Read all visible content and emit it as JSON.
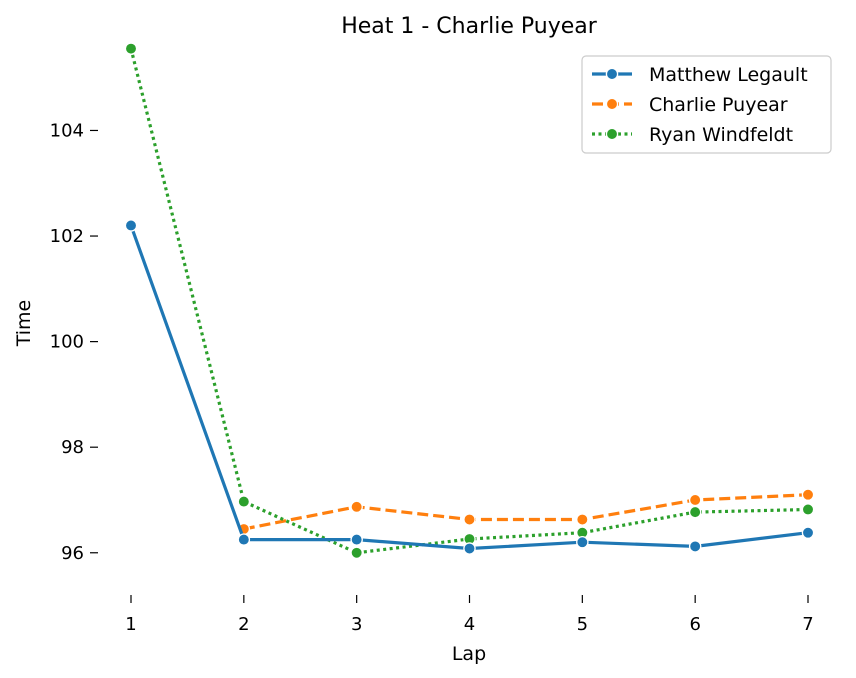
{
  "chart_data": {
    "type": "line",
    "title": "Heat 1 - Charlie Puyear",
    "xlabel": "Lap",
    "ylabel": "Time",
    "x": [
      1,
      2,
      3,
      4,
      5,
      6,
      7
    ],
    "xticks": [
      "1",
      "2",
      "3",
      "4",
      "5",
      "6",
      "7"
    ],
    "yticks": [
      "96",
      "98",
      "100",
      "102",
      "104"
    ],
    "xlim": [
      1,
      7
    ],
    "ylim": [
      95.2,
      105.6
    ],
    "grid": false,
    "legend_position": "top-right",
    "series": [
      {
        "name": "Matthew Legault",
        "color": "#1f77b4",
        "style": "solid",
        "values": [
          102.2,
          96.25,
          96.25,
          96.08,
          96.2,
          96.12,
          96.38
        ]
      },
      {
        "name": "Charlie Puyear",
        "color": "#ff7f0e",
        "style": "dashed",
        "values": null
      },
      {
        "name": "Ryan Windfeldt",
        "color": "#2ca02c",
        "style": "dotted",
        "values": [
          105.55,
          96.97,
          96.0,
          96.26,
          96.38,
          96.77,
          96.82
        ]
      }
    ]
  }
}
